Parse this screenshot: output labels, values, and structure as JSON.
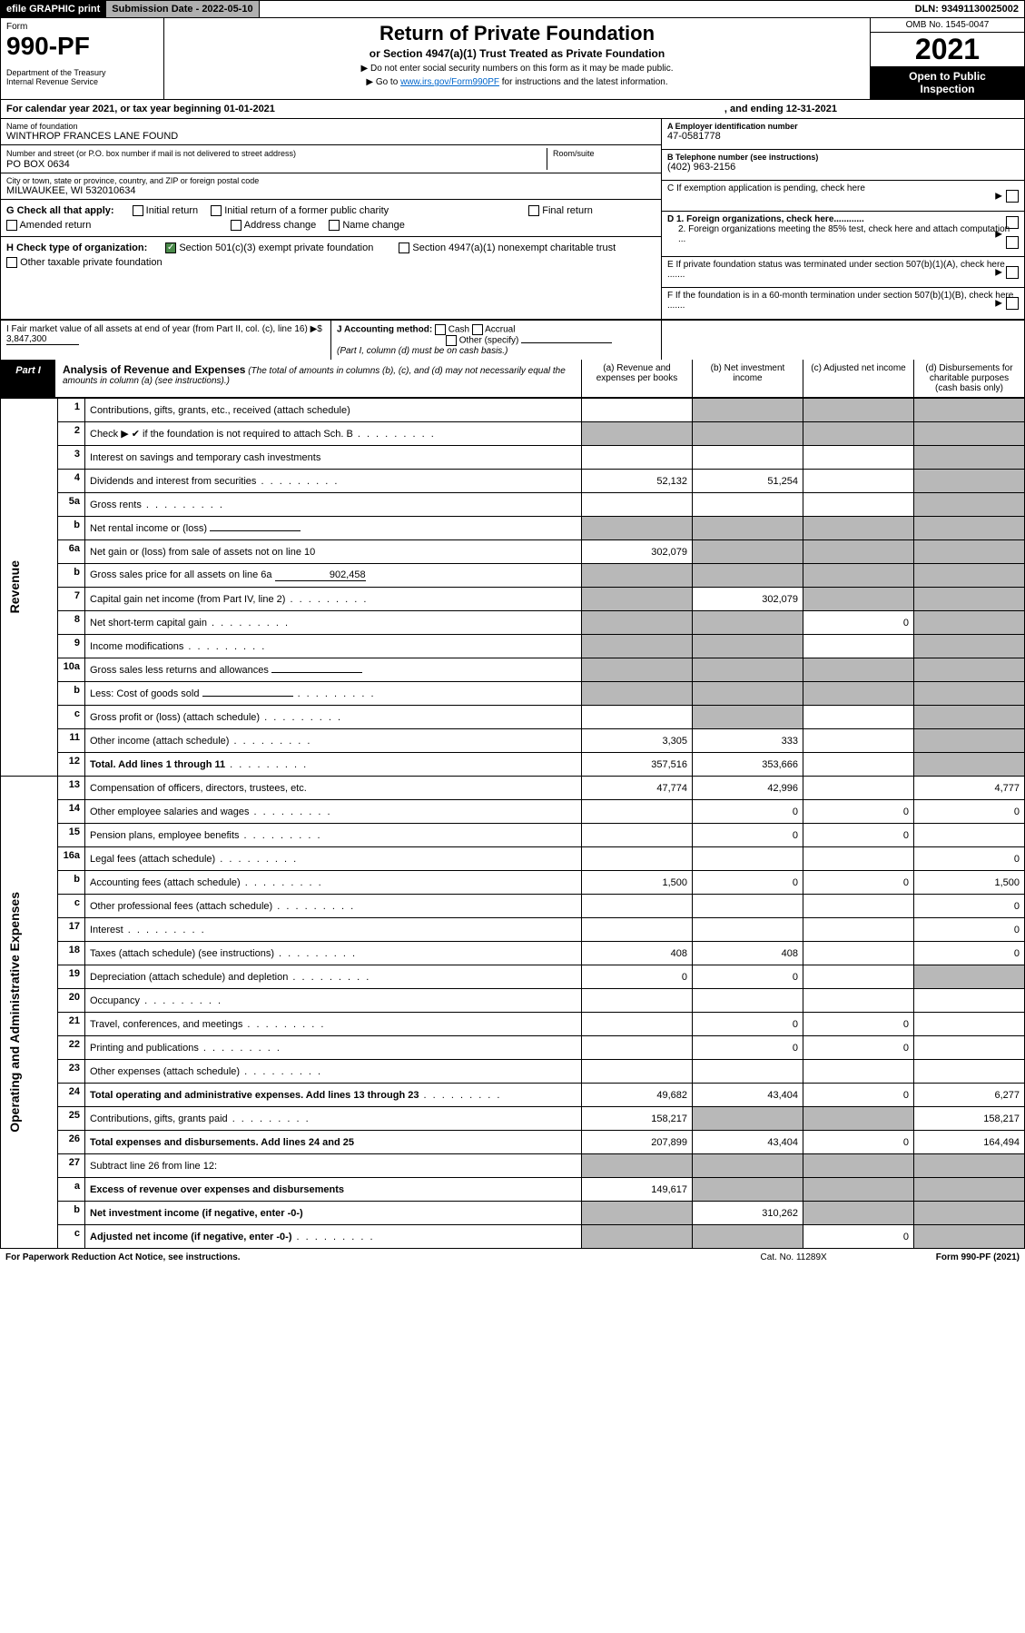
{
  "topbar": {
    "graphic": "efile GRAPHIC print",
    "submission": "Submission Date - 2022-05-10",
    "dln": "DLN: 93491130025002"
  },
  "header": {
    "form_label": "Form",
    "form_number": "990-PF",
    "dept": "Department of the Treasury\nInternal Revenue Service",
    "title": "Return of Private Foundation",
    "subtitle": "or Section 4947(a)(1) Trust Treated as Private Foundation",
    "note1": "▶ Do not enter social security numbers on this form as it may be made public.",
    "note2_pre": "▶ Go to ",
    "note2_link": "www.irs.gov/Form990PF",
    "note2_post": " for instructions and the latest information.",
    "omb": "OMB No. 1545-0047",
    "year": "2021",
    "openpub1": "Open to Public",
    "openpub2": "Inspection"
  },
  "calyear": {
    "begin": "For calendar year 2021, or tax year beginning 01-01-2021",
    "end": ", and ending 12-31-2021"
  },
  "info": {
    "name_label": "Name of foundation",
    "name": "WINTHROP FRANCES LANE FOUND",
    "addr_label": "Number and street (or P.O. box number if mail is not delivered to street address)",
    "addr": "PO BOX 0634",
    "room_label": "Room/suite",
    "city_label": "City or town, state or province, country, and ZIP or foreign postal code",
    "city": "MILWAUKEE, WI  532010634",
    "a_label": "A Employer identification number",
    "a_val": "47-0581778",
    "b_label": "B Telephone number (see instructions)",
    "b_val": "(402) 963-2156",
    "c_label": "C If exemption application is pending, check here",
    "d1_label": "D 1. Foreign organizations, check here............",
    "d2_label": "2. Foreign organizations meeting the 85% test, check here and attach computation ...",
    "e_label": "E  If private foundation status was terminated under section 507(b)(1)(A), check here .......",
    "f_label": "F  If the foundation is in a 60-month termination under section 507(b)(1)(B), check here .......",
    "g_label": "G Check all that apply:",
    "g_opts": [
      "Initial return",
      "Initial return of a former public charity",
      "Final return",
      "Amended return",
      "Address change",
      "Name change"
    ],
    "h_label": "H Check type of organization:",
    "h_opts": [
      "Section 501(c)(3) exempt private foundation",
      "Section 4947(a)(1) nonexempt charitable trust",
      "Other taxable private foundation"
    ],
    "i_label": "I Fair market value of all assets at end of year (from Part II, col. (c), line 16) ▶$",
    "i_val": "3,847,300",
    "j_label": "J Accounting method:",
    "j_cash": "Cash",
    "j_accrual": "Accrual",
    "j_other": "Other (specify)",
    "j_note": "(Part I, column (d) must be on cash basis.)"
  },
  "part1": {
    "tab": "Part I",
    "title": "Analysis of Revenue and Expenses",
    "note": "(The total of amounts in columns (b), (c), and (d) may not necessarily equal the amounts in column (a) (see instructions).)",
    "col_a": "(a)  Revenue and expenses per books",
    "col_b": "(b)  Net investment income",
    "col_c": "(c)  Adjusted net income",
    "col_d": "(d)  Disbursements for charitable purposes (cash basis only)"
  },
  "side": {
    "revenue": "Revenue",
    "expenses": "Operating and Administrative Expenses"
  },
  "rows": [
    {
      "n": "1",
      "lbl": "Contributions, gifts, grants, etc., received (attach schedule)",
      "a": "",
      "b": "g",
      "c": "g",
      "d": "g"
    },
    {
      "n": "2",
      "lbl": "Check ▶ ✔ if the foundation is not required to attach Sch. B",
      "dots": true,
      "a": "g",
      "b": "g",
      "c": "g",
      "d": "g"
    },
    {
      "n": "3",
      "lbl": "Interest on savings and temporary cash investments",
      "a": "",
      "b": "",
      "c": "",
      "d": "g"
    },
    {
      "n": "4",
      "lbl": "Dividends and interest from securities",
      "dots": true,
      "a": "52,132",
      "b": "51,254",
      "c": "",
      "d": "g"
    },
    {
      "n": "5a",
      "lbl": "Gross rents",
      "dots": true,
      "a": "",
      "b": "",
      "c": "",
      "d": "g"
    },
    {
      "n": "b",
      "lbl": "Net rental income or (loss)",
      "inline": " ",
      "a": "g",
      "b": "g",
      "c": "g",
      "d": "g"
    },
    {
      "n": "6a",
      "lbl": "Net gain or (loss) from sale of assets not on line 10",
      "a": "302,079",
      "b": "g",
      "c": "g",
      "d": "g"
    },
    {
      "n": "b",
      "lbl": "Gross sales price for all assets on line 6a",
      "inline": "902,458",
      "a": "g",
      "b": "g",
      "c": "g",
      "d": "g"
    },
    {
      "n": "7",
      "lbl": "Capital gain net income (from Part IV, line 2)",
      "dots": true,
      "a": "g",
      "b": "302,079",
      "c": "g",
      "d": "g"
    },
    {
      "n": "8",
      "lbl": "Net short-term capital gain",
      "dots": true,
      "a": "g",
      "b": "g",
      "c": "0",
      "d": "g"
    },
    {
      "n": "9",
      "lbl": "Income modifications",
      "dots": true,
      "a": "g",
      "b": "g",
      "c": "",
      "d": "g"
    },
    {
      "n": "10a",
      "lbl": "Gross sales less returns and allowances",
      "inline": " ",
      "a": "g",
      "b": "g",
      "c": "g",
      "d": "g"
    },
    {
      "n": "b",
      "lbl": "Less: Cost of goods sold",
      "dots": true,
      "inline": " ",
      "a": "g",
      "b": "g",
      "c": "g",
      "d": "g"
    },
    {
      "n": "c",
      "lbl": "Gross profit or (loss) (attach schedule)",
      "dots": true,
      "a": "",
      "b": "g",
      "c": "",
      "d": "g"
    },
    {
      "n": "11",
      "lbl": "Other income (attach schedule)",
      "dots": true,
      "a": "3,305",
      "b": "333",
      "c": "",
      "d": "g"
    },
    {
      "n": "12",
      "lbl": "Total. Add lines 1 through 11",
      "dots": true,
      "bold": true,
      "a": "357,516",
      "b": "353,666",
      "c": "",
      "d": "g"
    },
    {
      "n": "13",
      "lbl": "Compensation of officers, directors, trustees, etc.",
      "a": "47,774",
      "b": "42,996",
      "c": "",
      "d": "4,777"
    },
    {
      "n": "14",
      "lbl": "Other employee salaries and wages",
      "dots": true,
      "a": "",
      "b": "0",
      "c": "0",
      "d": "0"
    },
    {
      "n": "15",
      "lbl": "Pension plans, employee benefits",
      "dots": true,
      "a": "",
      "b": "0",
      "c": "0",
      "d": ""
    },
    {
      "n": "16a",
      "lbl": "Legal fees (attach schedule)",
      "dots": true,
      "a": "",
      "b": "",
      "c": "",
      "d": "0"
    },
    {
      "n": "b",
      "lbl": "Accounting fees (attach schedule)",
      "dots": true,
      "a": "1,500",
      "b": "0",
      "c": "0",
      "d": "1,500"
    },
    {
      "n": "c",
      "lbl": "Other professional fees (attach schedule)",
      "dots": true,
      "a": "",
      "b": "",
      "c": "",
      "d": "0"
    },
    {
      "n": "17",
      "lbl": "Interest",
      "dots": true,
      "a": "",
      "b": "",
      "c": "",
      "d": "0"
    },
    {
      "n": "18",
      "lbl": "Taxes (attach schedule) (see instructions)",
      "dots": true,
      "a": "408",
      "b": "408",
      "c": "",
      "d": "0"
    },
    {
      "n": "19",
      "lbl": "Depreciation (attach schedule) and depletion",
      "dots": true,
      "a": "0",
      "b": "0",
      "c": "",
      "d": "g"
    },
    {
      "n": "20",
      "lbl": "Occupancy",
      "dots": true,
      "a": "",
      "b": "",
      "c": "",
      "d": ""
    },
    {
      "n": "21",
      "lbl": "Travel, conferences, and meetings",
      "dots": true,
      "a": "",
      "b": "0",
      "c": "0",
      "d": ""
    },
    {
      "n": "22",
      "lbl": "Printing and publications",
      "dots": true,
      "a": "",
      "b": "0",
      "c": "0",
      "d": ""
    },
    {
      "n": "23",
      "lbl": "Other expenses (attach schedule)",
      "dots": true,
      "a": "",
      "b": "",
      "c": "",
      "d": ""
    },
    {
      "n": "24",
      "lbl": "Total operating and administrative expenses. Add lines 13 through 23",
      "dots": true,
      "bold": true,
      "a": "49,682",
      "b": "43,404",
      "c": "0",
      "d": "6,277"
    },
    {
      "n": "25",
      "lbl": "Contributions, gifts, grants paid",
      "dots": true,
      "a": "158,217",
      "b": "g",
      "c": "g",
      "d": "158,217"
    },
    {
      "n": "26",
      "lbl": "Total expenses and disbursements. Add lines 24 and 25",
      "bold": true,
      "a": "207,899",
      "b": "43,404",
      "c": "0",
      "d": "164,494"
    },
    {
      "n": "27",
      "lbl": "Subtract line 26 from line 12:",
      "a": "g",
      "b": "g",
      "c": "g",
      "d": "g"
    },
    {
      "n": "a",
      "lbl": "Excess of revenue over expenses and disbursements",
      "bold": true,
      "a": "149,617",
      "b": "g",
      "c": "g",
      "d": "g"
    },
    {
      "n": "b",
      "lbl": "Net investment income (if negative, enter -0-)",
      "bold": true,
      "a": "g",
      "b": "310,262",
      "c": "g",
      "d": "g"
    },
    {
      "n": "c",
      "lbl": "Adjusted net income (if negative, enter -0-)",
      "bold": true,
      "dots": true,
      "a": "g",
      "b": "g",
      "c": "0",
      "d": "g"
    }
  ],
  "footer": {
    "left": "For Paperwork Reduction Act Notice, see instructions.",
    "mid": "Cat. No. 11289X",
    "right": "Form 990-PF (2021)"
  }
}
